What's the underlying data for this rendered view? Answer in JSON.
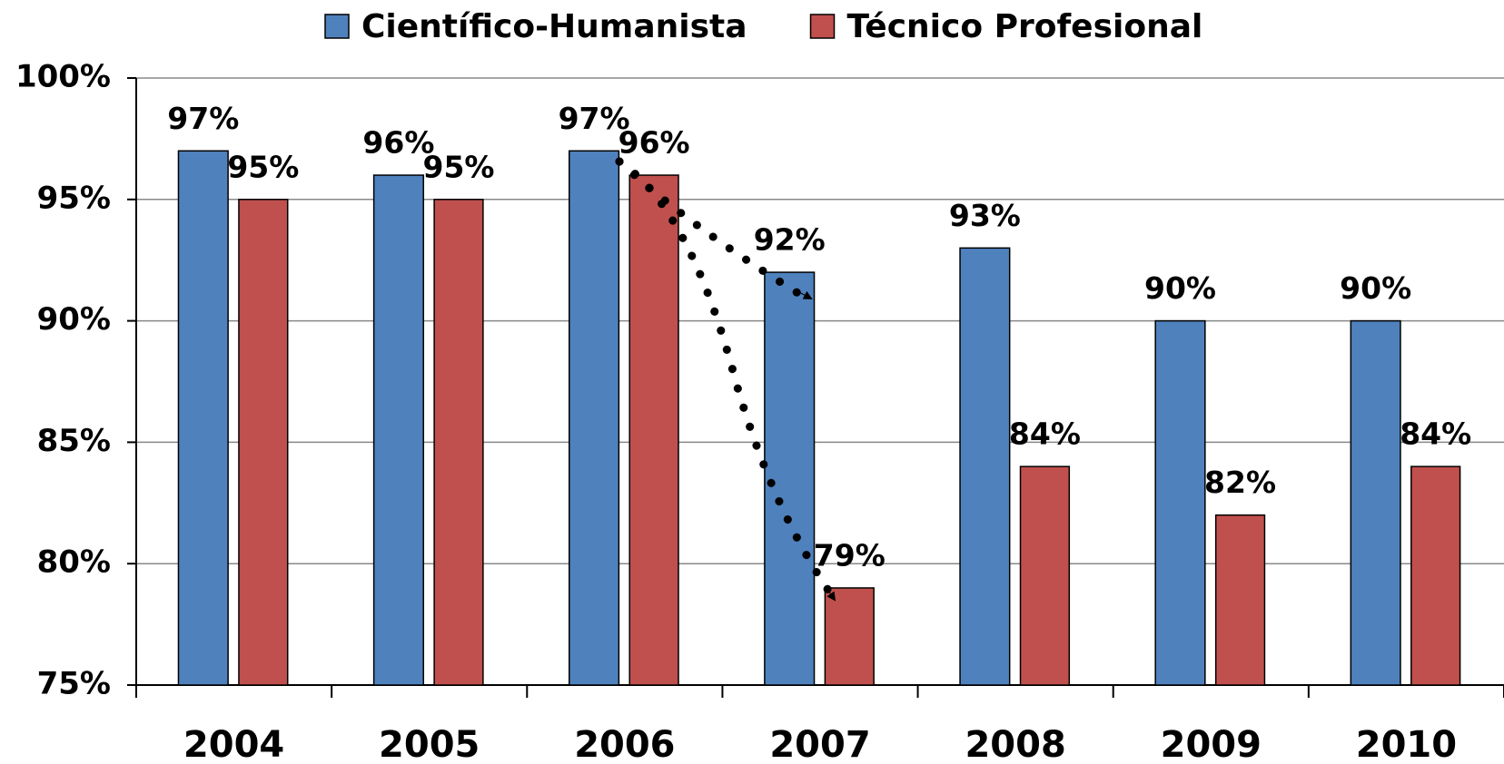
{
  "chart_data": {
    "type": "bar",
    "categories": [
      "2004",
      "2005",
      "2006",
      "2007",
      "2008",
      "2009",
      "2010"
    ],
    "series": [
      {
        "name": "Científico-Humanista",
        "color": "#4f81bd",
        "values": [
          97,
          96,
          97,
          92,
          93,
          90,
          90
        ],
        "value_labels": [
          "97%",
          "96%",
          "97%",
          "92%",
          "93%",
          "90%",
          "90%"
        ]
      },
      {
        "name": "Técnico Profesional",
        "color": "#c0504d",
        "values": [
          95,
          95,
          96,
          79,
          84,
          82,
          84
        ],
        "value_labels": [
          "95%",
          "95%",
          "96%",
          "79%",
          "84%",
          "82%",
          "84%"
        ]
      }
    ],
    "ylim": [
      75,
      100
    ],
    "yticks": [
      {
        "value": 75,
        "label": "75%"
      },
      {
        "value": 80,
        "label": "80%"
      },
      {
        "value": 85,
        "label": "85%"
      },
      {
        "value": 90,
        "label": "90%"
      },
      {
        "value": 95,
        "label": "95%"
      },
      {
        "value": 100,
        "label": "100%"
      }
    ],
    "grid": true
  }
}
